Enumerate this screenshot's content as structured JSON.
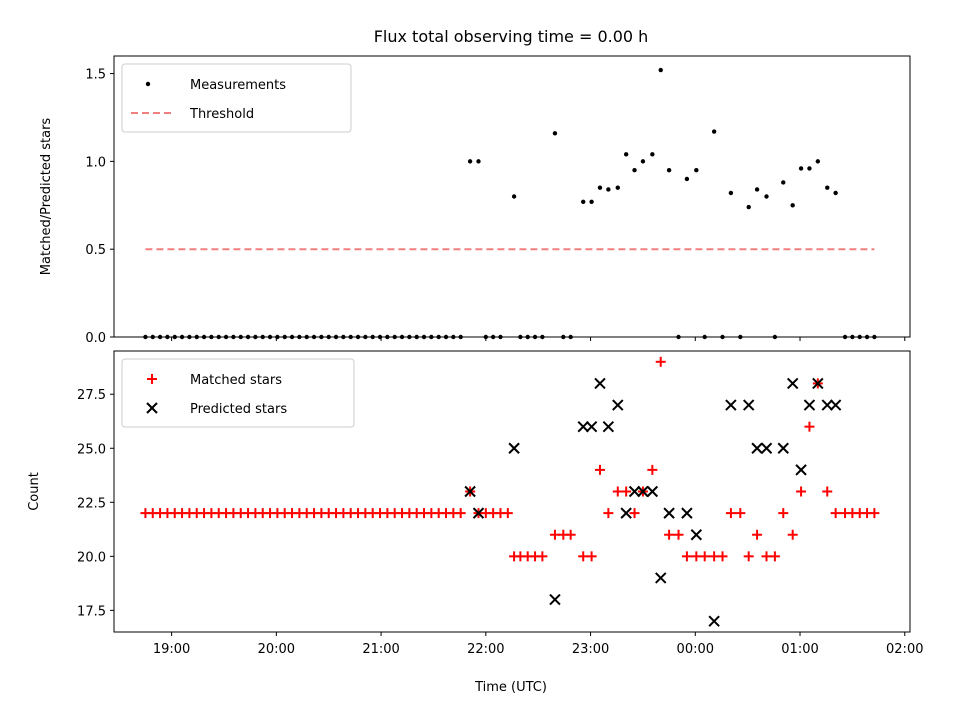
{
  "chart_data": {
    "type": "scatter",
    "title": "Flux total observing time = 0.00 h",
    "xlabel": "Time (UTC)",
    "xlim_hours": [
      18.45,
      26.05
    ],
    "xticks": [
      19,
      20,
      21,
      22,
      23,
      24,
      25,
      26
    ],
    "xtick_labels": [
      "19:00",
      "20:00",
      "21:00",
      "22:00",
      "23:00",
      "00:00",
      "01:00",
      "02:00"
    ],
    "panels": [
      {
        "ylabel": "Matched/Predicted stars",
        "ylim": [
          0,
          1.6
        ],
        "yticks": [
          0.0,
          0.5,
          1.0,
          1.5
        ],
        "ytick_labels": [
          "0.0",
          "0.5",
          "1.0",
          "1.5"
        ],
        "legend": {
          "placement": "upper-left",
          "entries": [
            "Measurements",
            "Threshold"
          ]
        },
        "series": [
          {
            "name": "Measurements",
            "marker": "dot",
            "color": "#000000",
            "points": [
              [
                18.75,
                0
              ],
              [
                18.82,
                0
              ],
              [
                18.89,
                0
              ],
              [
                18.96,
                0
              ],
              [
                19.03,
                0
              ],
              [
                19.1,
                0
              ],
              [
                19.17,
                0
              ],
              [
                19.24,
                0
              ],
              [
                19.31,
                0
              ],
              [
                19.38,
                0
              ],
              [
                19.45,
                0
              ],
              [
                19.52,
                0
              ],
              [
                19.59,
                0
              ],
              [
                19.66,
                0
              ],
              [
                19.73,
                0
              ],
              [
                19.8,
                0
              ],
              [
                19.87,
                0
              ],
              [
                19.94,
                0
              ],
              [
                20.01,
                0
              ],
              [
                20.08,
                0
              ],
              [
                20.15,
                0
              ],
              [
                20.22,
                0
              ],
              [
                20.29,
                0
              ],
              [
                20.36,
                0
              ],
              [
                20.43,
                0
              ],
              [
                20.5,
                0
              ],
              [
                20.57,
                0
              ],
              [
                20.64,
                0
              ],
              [
                20.71,
                0
              ],
              [
                20.78,
                0
              ],
              [
                20.85,
                0
              ],
              [
                20.92,
                0
              ],
              [
                20.99,
                0
              ],
              [
                21.06,
                0
              ],
              [
                21.13,
                0
              ],
              [
                21.2,
                0
              ],
              [
                21.27,
                0
              ],
              [
                21.34,
                0
              ],
              [
                21.41,
                0
              ],
              [
                21.48,
                0
              ],
              [
                21.55,
                0
              ],
              [
                21.62,
                0
              ],
              [
                21.69,
                0
              ],
              [
                21.76,
                0
              ],
              [
                21.85,
                1.0
              ],
              [
                21.93,
                1.0
              ],
              [
                22.0,
                0
              ],
              [
                22.07,
                0
              ],
              [
                22.14,
                0
              ],
              [
                22.27,
                0.8
              ],
              [
                22.33,
                0
              ],
              [
                22.4,
                0
              ],
              [
                22.47,
                0
              ],
              [
                22.54,
                0
              ],
              [
                22.66,
                1.16
              ],
              [
                22.74,
                0
              ],
              [
                22.81,
                0
              ],
              [
                22.93,
                0.77
              ],
              [
                23.01,
                0.77
              ],
              [
                23.09,
                0.85
              ],
              [
                23.17,
                0.84
              ],
              [
                23.26,
                0.85
              ],
              [
                23.34,
                1.04
              ],
              [
                23.42,
                0.95
              ],
              [
                23.5,
                1.0
              ],
              [
                23.59,
                1.04
              ],
              [
                23.67,
                1.52
              ],
              [
                23.75,
                0.95
              ],
              [
                23.84,
                0
              ],
              [
                23.92,
                0.9
              ],
              [
                24.01,
                0.95
              ],
              [
                24.09,
                0
              ],
              [
                24.18,
                1.17
              ],
              [
                24.26,
                0
              ],
              [
                24.34,
                0.82
              ],
              [
                24.43,
                0
              ],
              [
                24.51,
                0.74
              ],
              [
                24.59,
                0.84
              ],
              [
                24.68,
                0.8
              ],
              [
                24.76,
                0
              ],
              [
                24.84,
                0.88
              ],
              [
                24.93,
                0.75
              ],
              [
                25.01,
                0.96
              ],
              [
                25.09,
                0.96
              ],
              [
                25.17,
                1.0
              ],
              [
                25.26,
                0.85
              ],
              [
                25.34,
                0.82
              ],
              [
                25.43,
                0
              ],
              [
                25.5,
                0
              ],
              [
                25.57,
                0
              ],
              [
                25.64,
                0
              ],
              [
                25.71,
                0
              ]
            ]
          },
          {
            "name": "Threshold",
            "style": "dashed",
            "color": "#f08080",
            "points": [
              [
                18.75,
                0.5
              ],
              [
                25.71,
                0.5
              ]
            ]
          }
        ]
      },
      {
        "ylabel": "Count",
        "ylim": [
          16.5,
          29.5
        ],
        "yticks": [
          17.5,
          20.0,
          22.5,
          25.0,
          27.5
        ],
        "ytick_labels": [
          "17.5",
          "20.0",
          "22.5",
          "25.0",
          "27.5"
        ],
        "legend": {
          "placement": "upper-left",
          "entries": [
            "Matched stars",
            "Predicted stars"
          ]
        },
        "series": [
          {
            "name": "Matched stars",
            "marker": "plus",
            "color": "#ff0000",
            "points": [
              [
                18.75,
                22
              ],
              [
                18.82,
                22
              ],
              [
                18.89,
                22
              ],
              [
                18.96,
                22
              ],
              [
                19.03,
                22
              ],
              [
                19.1,
                22
              ],
              [
                19.17,
                22
              ],
              [
                19.24,
                22
              ],
              [
                19.31,
                22
              ],
              [
                19.38,
                22
              ],
              [
                19.45,
                22
              ],
              [
                19.52,
                22
              ],
              [
                19.59,
                22
              ],
              [
                19.66,
                22
              ],
              [
                19.73,
                22
              ],
              [
                19.8,
                22
              ],
              [
                19.87,
                22
              ],
              [
                19.94,
                22
              ],
              [
                20.01,
                22
              ],
              [
                20.08,
                22
              ],
              [
                20.15,
                22
              ],
              [
                20.22,
                22
              ],
              [
                20.29,
                22
              ],
              [
                20.36,
                22
              ],
              [
                20.43,
                22
              ],
              [
                20.5,
                22
              ],
              [
                20.57,
                22
              ],
              [
                20.64,
                22
              ],
              [
                20.71,
                22
              ],
              [
                20.78,
                22
              ],
              [
                20.85,
                22
              ],
              [
                20.92,
                22
              ],
              [
                20.99,
                22
              ],
              [
                21.06,
                22
              ],
              [
                21.13,
                22
              ],
              [
                21.2,
                22
              ],
              [
                21.27,
                22
              ],
              [
                21.34,
                22
              ],
              [
                21.41,
                22
              ],
              [
                21.48,
                22
              ],
              [
                21.55,
                22
              ],
              [
                21.62,
                22
              ],
              [
                21.69,
                22
              ],
              [
                21.76,
                22
              ],
              [
                21.85,
                23
              ],
              [
                21.93,
                22
              ],
              [
                22.0,
                22
              ],
              [
                22.07,
                22
              ],
              [
                22.14,
                22
              ],
              [
                22.21,
                22
              ],
              [
                22.27,
                20
              ],
              [
                22.33,
                20
              ],
              [
                22.4,
                20
              ],
              [
                22.47,
                20
              ],
              [
                22.54,
                20
              ],
              [
                22.66,
                21
              ],
              [
                22.74,
                21
              ],
              [
                22.81,
                21
              ],
              [
                22.93,
                20
              ],
              [
                23.01,
                20
              ],
              [
                23.09,
                24
              ],
              [
                23.17,
                22
              ],
              [
                23.26,
                23
              ],
              [
                23.34,
                23
              ],
              [
                23.42,
                22
              ],
              [
                23.5,
                23
              ],
              [
                23.59,
                24
              ],
              [
                23.67,
                29
              ],
              [
                23.75,
                21
              ],
              [
                23.84,
                21
              ],
              [
                23.92,
                20
              ],
              [
                24.01,
                20
              ],
              [
                24.09,
                20
              ],
              [
                24.18,
                20
              ],
              [
                24.26,
                20
              ],
              [
                24.34,
                22
              ],
              [
                24.43,
                22
              ],
              [
                24.51,
                20
              ],
              [
                24.59,
                21
              ],
              [
                24.68,
                20
              ],
              [
                24.76,
                20
              ],
              [
                24.84,
                22
              ],
              [
                24.93,
                21
              ],
              [
                25.01,
                23
              ],
              [
                25.09,
                26
              ],
              [
                25.17,
                28
              ],
              [
                25.26,
                23
              ],
              [
                25.34,
                22
              ],
              [
                25.43,
                22
              ],
              [
                25.5,
                22
              ],
              [
                25.57,
                22
              ],
              [
                25.64,
                22
              ],
              [
                25.71,
                22
              ]
            ]
          },
          {
            "name": "Predicted stars",
            "marker": "x",
            "color": "#000000",
            "points": [
              [
                21.85,
                23
              ],
              [
                21.93,
                22
              ],
              [
                22.27,
                25
              ],
              [
                22.66,
                18
              ],
              [
                22.93,
                26
              ],
              [
                23.01,
                26
              ],
              [
                23.09,
                28
              ],
              [
                23.17,
                26
              ],
              [
                23.26,
                27
              ],
              [
                23.34,
                22
              ],
              [
                23.42,
                23
              ],
              [
                23.5,
                23
              ],
              [
                23.59,
                23
              ],
              [
                23.67,
                19
              ],
              [
                23.75,
                22
              ],
              [
                23.92,
                22
              ],
              [
                24.01,
                21
              ],
              [
                24.18,
                17
              ],
              [
                24.34,
                27
              ],
              [
                24.51,
                27
              ],
              [
                24.59,
                25
              ],
              [
                24.68,
                25
              ],
              [
                24.84,
                25
              ],
              [
                24.93,
                28
              ],
              [
                25.01,
                24
              ],
              [
                25.09,
                27
              ],
              [
                25.17,
                28
              ],
              [
                25.26,
                27
              ],
              [
                25.34,
                27
              ]
            ]
          }
        ]
      }
    ]
  }
}
